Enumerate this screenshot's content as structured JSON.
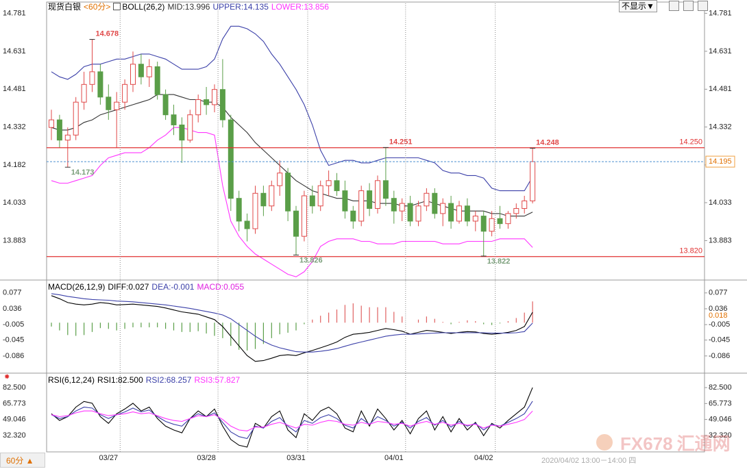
{
  "chart_data": [
    {
      "type": "candlestick",
      "title": "现货白银",
      "period": "<60分>",
      "indicator": "BOLL(26,2)",
      "up_color": "#e04848",
      "down_color": "#5a9e48",
      "open": [
        14.33,
        14.36,
        14.28,
        14.3,
        14.43,
        14.5,
        14.55,
        14.45,
        14.4,
        14.43,
        14.5,
        14.58,
        14.53,
        14.57,
        14.46,
        14.38,
        14.34,
        14.28,
        14.38,
        14.44,
        14.42,
        14.48,
        14.36,
        14.05,
        13.96,
        13.93,
        14.07,
        14.02,
        14.1,
        14.15,
        14.0,
        13.9,
        14.06,
        14.02,
        14.1,
        14.12,
        14.08,
        14.0,
        13.96,
        14.08,
        14.01,
        14.12,
        14.05,
        14.0,
        14.03,
        13.96,
        14.02,
        14.07,
        13.99,
        14.03,
        13.96,
        14.02,
        13.96,
        13.98,
        13.92,
        13.97,
        13.95,
        13.99,
        14.01,
        14.04
      ],
      "high": [
        14.4,
        14.38,
        14.33,
        14.45,
        14.55,
        14.678,
        14.58,
        14.5,
        14.47,
        14.52,
        14.63,
        14.62,
        14.6,
        14.59,
        14.48,
        14.42,
        14.37,
        14.4,
        14.46,
        14.49,
        14.5,
        14.6,
        14.38,
        14.08,
        13.99,
        14.1,
        14.1,
        14.12,
        14.2,
        14.17,
        14.02,
        14.08,
        14.1,
        14.12,
        14.16,
        14.15,
        14.12,
        14.02,
        14.1,
        14.11,
        14.14,
        14.251,
        14.08,
        14.05,
        14.06,
        14.04,
        14.09,
        14.09,
        14.05,
        14.06,
        14.04,
        14.05,
        14.0,
        14.0,
        14.0,
        14.02,
        14.0,
        14.03,
        14.06,
        14.248
      ],
      "low": [
        14.28,
        14.25,
        14.173,
        14.28,
        14.4,
        14.47,
        14.42,
        14.36,
        14.25,
        14.4,
        14.47,
        14.5,
        14.49,
        14.44,
        14.36,
        14.3,
        14.19,
        14.27,
        14.35,
        14.38,
        14.39,
        14.33,
        14.0,
        13.92,
        13.88,
        13.91,
        13.98,
        14.0,
        14.06,
        13.96,
        13.826,
        13.88,
        13.99,
        14.0,
        14.06,
        14.06,
        13.97,
        13.93,
        13.94,
        13.98,
        13.99,
        14.02,
        13.95,
        13.96,
        13.94,
        13.94,
        14.0,
        13.97,
        13.94,
        13.93,
        13.95,
        13.94,
        13.92,
        13.822,
        13.9,
        13.93,
        13.93,
        13.97,
        13.99,
        14.03
      ],
      "close": [
        14.36,
        14.28,
        14.3,
        14.43,
        14.5,
        14.55,
        14.45,
        14.4,
        14.43,
        14.5,
        14.58,
        14.53,
        14.57,
        14.46,
        14.38,
        14.34,
        14.28,
        14.38,
        14.44,
        14.42,
        14.48,
        14.36,
        14.05,
        13.96,
        13.93,
        14.07,
        14.02,
        14.1,
        14.15,
        14.0,
        13.9,
        14.06,
        14.02,
        14.1,
        14.12,
        14.08,
        14.0,
        13.96,
        14.08,
        14.01,
        14.12,
        14.05,
        14.0,
        14.03,
        13.96,
        14.02,
        14.07,
        13.99,
        14.03,
        13.96,
        14.02,
        13.96,
        13.98,
        13.92,
        13.97,
        13.95,
        13.99,
        14.01,
        14.04,
        14.195
      ],
      "series": [
        {
          "name": "MID:13.996",
          "color": "#333333",
          "values": [
            14.33,
            14.32,
            14.32,
            14.33,
            14.35,
            14.36,
            14.38,
            14.39,
            14.4,
            14.41,
            14.42,
            14.43,
            14.44,
            14.46,
            14.46,
            14.46,
            14.45,
            14.44,
            14.44,
            14.43,
            14.43,
            14.41,
            14.37,
            14.34,
            14.31,
            14.27,
            14.24,
            14.21,
            14.18,
            14.15,
            14.12,
            14.1,
            14.08,
            14.07,
            14.06,
            14.05,
            14.05,
            14.04,
            14.04,
            14.04,
            14.03,
            14.03,
            14.03,
            14.02,
            14.02,
            14.03,
            14.04,
            14.03,
            14.02,
            14.01,
            14.0,
            14.0,
            14.0,
            14.0,
            13.99,
            13.99,
            13.98,
            13.98,
            13.98,
            13.996
          ]
        },
        {
          "name": "UPPER:14.135",
          "color": "#3a3fa8",
          "values": [
            14.55,
            14.53,
            14.52,
            14.54,
            14.57,
            14.58,
            14.58,
            14.59,
            14.6,
            14.6,
            14.61,
            14.62,
            14.62,
            14.61,
            14.6,
            14.58,
            14.56,
            14.56,
            14.56,
            14.57,
            14.6,
            14.68,
            14.73,
            14.73,
            14.72,
            14.7,
            14.67,
            14.62,
            14.58,
            14.53,
            14.48,
            14.42,
            14.34,
            14.24,
            14.18,
            14.19,
            14.2,
            14.2,
            14.19,
            14.19,
            14.2,
            14.21,
            14.21,
            14.21,
            14.21,
            14.21,
            14.2,
            14.19,
            14.16,
            14.15,
            14.15,
            14.14,
            14.14,
            14.13,
            14.09,
            14.08,
            14.08,
            14.08,
            14.08,
            14.135
          ]
        },
        {
          "name": "LOWER:13.856",
          "color": "#ff33ff",
          "values": [
            14.12,
            14.11,
            14.11,
            14.12,
            14.13,
            14.14,
            14.18,
            14.21,
            14.22,
            14.23,
            14.23,
            14.23,
            14.25,
            14.28,
            14.3,
            14.33,
            14.33,
            14.32,
            14.31,
            14.31,
            14.3,
            14.1,
            13.96,
            13.9,
            13.86,
            13.83,
            13.81,
            13.79,
            13.77,
            13.75,
            13.74,
            13.76,
            13.8,
            13.86,
            13.88,
            13.89,
            13.89,
            13.89,
            13.88,
            13.88,
            13.87,
            13.87,
            13.87,
            13.88,
            13.88,
            13.88,
            13.88,
            13.88,
            13.87,
            13.87,
            13.87,
            13.88,
            13.88,
            13.88,
            13.88,
            13.89,
            13.89,
            13.89,
            13.89,
            13.856
          ]
        }
      ],
      "ylim": [
        13.73,
        14.82
      ],
      "yticks": [
        14.781,
        14.631,
        14.481,
        14.332,
        14.182,
        14.033,
        13.883
      ],
      "hlines": [
        {
          "value": 14.25,
          "label": "14.250"
        },
        {
          "value": 13.82,
          "label": "13.820"
        }
      ],
      "hline_color": "#e03030",
      "high_labels": [
        14.678,
        14.251,
        14.248
      ],
      "low_labels": [
        14.173,
        13.826,
        13.822
      ],
      "last_price": 14.195
    },
    {
      "type": "macd",
      "title": "MACD(26,12,9)",
      "series": [
        {
          "name": "DIFF:0.027",
          "color": "#000000",
          "values": [
            0.07,
            0.062,
            0.052,
            0.048,
            0.046,
            0.048,
            0.052,
            0.05,
            0.046,
            0.047,
            0.048,
            0.046,
            0.044,
            0.042,
            0.038,
            0.033,
            0.028,
            0.025,
            0.022,
            0.015,
            0.008,
            -0.01,
            -0.035,
            -0.06,
            -0.085,
            -0.1,
            -0.098,
            -0.092,
            -0.085,
            -0.083,
            -0.085,
            -0.078,
            -0.072,
            -0.065,
            -0.058,
            -0.05,
            -0.038,
            -0.03,
            -0.028,
            -0.025,
            -0.02,
            -0.015,
            -0.018,
            -0.022,
            -0.03,
            -0.025,
            -0.02,
            -0.022,
            -0.025,
            -0.028,
            -0.025,
            -0.023,
            -0.024,
            -0.028,
            -0.03,
            -0.028,
            -0.025,
            -0.02,
            -0.01,
            0.027
          ]
        },
        {
          "name": "DEA:-0.001",
          "color": "#3a3fa8",
          "values": [
            0.075,
            0.072,
            0.068,
            0.065,
            0.062,
            0.06,
            0.059,
            0.058,
            0.056,
            0.055,
            0.054,
            0.052,
            0.05,
            0.048,
            0.046,
            0.043,
            0.04,
            0.037,
            0.033,
            0.029,
            0.025,
            0.02,
            0.01,
            -0.005,
            -0.02,
            -0.035,
            -0.048,
            -0.058,
            -0.065,
            -0.07,
            -0.075,
            -0.076,
            -0.076,
            -0.074,
            -0.071,
            -0.067,
            -0.061,
            -0.055,
            -0.05,
            -0.045,
            -0.04,
            -0.035,
            -0.032,
            -0.03,
            -0.03,
            -0.029,
            -0.028,
            -0.027,
            -0.026,
            -0.026,
            -0.026,
            -0.026,
            -0.026,
            -0.026,
            -0.027,
            -0.027,
            -0.027,
            -0.026,
            -0.023,
            -0.001
          ]
        },
        {
          "name": "MACD:0.055",
          "color": "#e020e0",
          "type": "bar",
          "up_color": "#e06060",
          "down_color": "#5a9e48",
          "values": [
            -0.01,
            -0.02,
            -0.032,
            -0.034,
            -0.032,
            -0.024,
            -0.014,
            -0.016,
            -0.02,
            -0.016,
            -0.012,
            -0.012,
            -0.012,
            -0.012,
            -0.016,
            -0.02,
            -0.024,
            -0.024,
            -0.022,
            -0.028,
            -0.034,
            -0.04,
            -0.06,
            -0.07,
            -0.072,
            -0.068,
            -0.055,
            -0.04,
            -0.03,
            -0.026,
            -0.02,
            -0.004,
            0.008,
            0.018,
            0.026,
            0.034,
            0.046,
            0.05,
            0.044,
            0.04,
            0.04,
            0.04,
            0.028,
            0.016,
            0.0,
            0.008,
            0.016,
            0.01,
            0.002,
            -0.004,
            0.002,
            0.006,
            0.004,
            -0.004,
            -0.006,
            -0.002,
            0.004,
            0.012,
            0.026,
            0.055
          ]
        }
      ],
      "ylim": [
        -0.127,
        0.105
      ],
      "yticks": [
        0.077,
        0.036,
        -0.005,
        -0.045,
        -0.086
      ],
      "marker_value": 0.018
    },
    {
      "type": "line",
      "title": "RSI(6,12,24)",
      "categories": [
        null,
        null,
        null,
        null,
        null,
        null,
        null,
        "03/27",
        null,
        null,
        null,
        null,
        null,
        null,
        null,
        null,
        null,
        null,
        null,
        "03/28",
        null,
        null,
        null,
        null,
        null,
        null,
        null,
        null,
        null,
        null,
        "03/31",
        null,
        null,
        null,
        null,
        null,
        null,
        null,
        null,
        null,
        null,
        null,
        "04/01",
        null,
        null,
        null,
        null,
        null,
        null,
        null,
        null,
        null,
        null,
        "04/02",
        null,
        null,
        null,
        null,
        null,
        null
      ],
      "series": [
        {
          "name": "RSI1:82.500",
          "color": "#000000",
          "values": [
            55,
            48,
            52,
            62,
            68,
            66,
            52,
            45,
            55,
            60,
            66,
            58,
            62,
            50,
            42,
            38,
            35,
            50,
            58,
            52,
            60,
            42,
            28,
            22,
            20,
            45,
            40,
            52,
            58,
            38,
            30,
            55,
            48,
            58,
            62,
            55,
            40,
            36,
            58,
            42,
            60,
            50,
            38,
            48,
            34,
            50,
            58,
            38,
            52,
            36,
            50,
            38,
            46,
            32,
            45,
            40,
            48,
            55,
            62,
            82.5
          ]
        },
        {
          "name": "RSI2:68.257",
          "color": "#3a3fa8",
          "values": [
            54,
            50,
            52,
            58,
            62,
            61,
            54,
            50,
            54,
            57,
            61,
            57,
            59,
            52,
            47,
            44,
            42,
            50,
            55,
            52,
            56,
            46,
            36,
            31,
            29,
            42,
            40,
            47,
            51,
            42,
            36,
            48,
            45,
            51,
            54,
            50,
            43,
            40,
            50,
            44,
            52,
            48,
            42,
            46,
            40,
            47,
            51,
            43,
            48,
            41,
            47,
            42,
            45,
            38,
            44,
            42,
            46,
            50,
            55,
            68.257
          ]
        },
        {
          "name": "RSI3:57.827",
          "color": "#ff33ff",
          "values": [
            54,
            52,
            53,
            56,
            58,
            58,
            55,
            53,
            54,
            55,
            57,
            55,
            56,
            53,
            50,
            48,
            47,
            50,
            53,
            52,
            54,
            49,
            42,
            38,
            37,
            41,
            41,
            44,
            46,
            43,
            40,
            44,
            43,
            46,
            48,
            47,
            44,
            43,
            46,
            44,
            47,
            46,
            44,
            45,
            42,
            45,
            47,
            44,
            46,
            43,
            45,
            43,
            44,
            40,
            43,
            42,
            44,
            46,
            49,
            57.827
          ]
        }
      ],
      "ylim": [
        15,
        95.5
      ],
      "yticks": [
        {
          "value": 82.5,
          "label": "82.500"
        },
        65.773,
        49.046,
        {
          "value": 32.32,
          "label": "32.320"
        }
      ]
    }
  ],
  "toolbar": {
    "button": "不显示▼"
  },
  "footer": {
    "period": "60分 ▲",
    "time": "2020/04/02 13:00－14:00 四"
  },
  "watermark": {
    "brand": "FX678",
    "name": "汇通网"
  }
}
